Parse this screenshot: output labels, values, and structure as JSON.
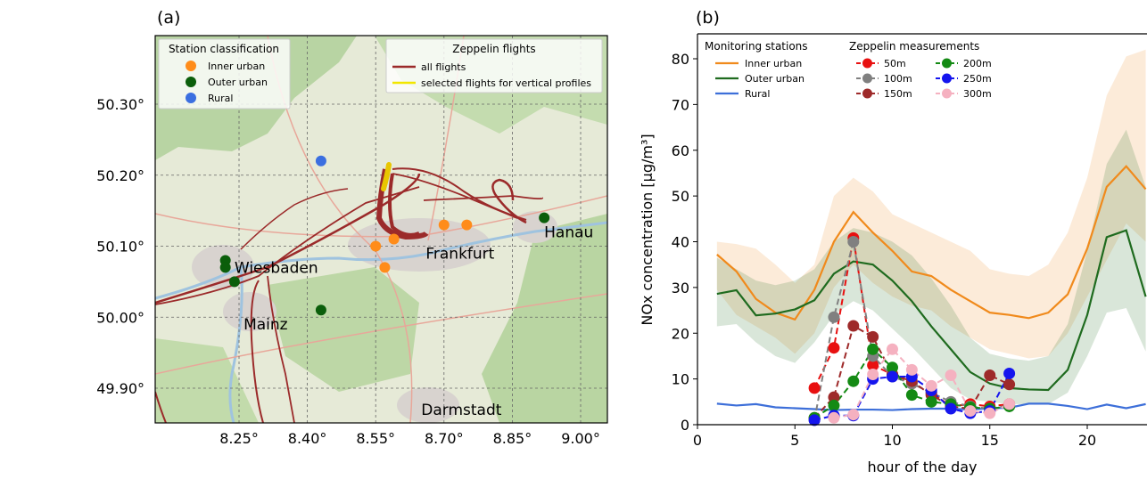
{
  "panels": {
    "a": {
      "label": "(a)"
    },
    "b": {
      "label": "(b)"
    }
  },
  "map": {
    "lat_ticks": [
      {
        "value": 50.3,
        "label": "50.30°"
      },
      {
        "value": 50.2,
        "label": "50.20°"
      },
      {
        "value": 50.1,
        "label": "50.10°"
      },
      {
        "value": 50.0,
        "label": "50.00°"
      },
      {
        "value": 49.9,
        "label": "49.90°"
      }
    ],
    "lon_ticks": [
      {
        "value": 8.25,
        "label": "8.25°"
      },
      {
        "value": 8.4,
        "label": "8.40°"
      },
      {
        "value": 8.55,
        "label": "8.55°"
      },
      {
        "value": 8.7,
        "label": "8.70°"
      },
      {
        "value": 8.85,
        "label": "8.85°"
      },
      {
        "value": 9.0,
        "label": "9.00°"
      }
    ],
    "extent": {
      "lon": [
        8.0,
        9.95
      ],
      "lat": [
        49.85,
        50.41
      ]
    },
    "cities": [
      {
        "name": "Wiesbaden",
        "lon": 8.24,
        "lat": 50.07
      },
      {
        "name": "Mainz",
        "lon": 8.26,
        "lat": 49.99
      },
      {
        "name": "Frankfurt",
        "lon": 8.66,
        "lat": 50.09
      },
      {
        "name": "Hanau",
        "lon": 8.92,
        "lat": 50.12
      },
      {
        "name": "Darmstadt",
        "lon": 8.65,
        "lat": 49.87
      }
    ],
    "legend_stations": {
      "title": "Station classification",
      "items": [
        {
          "label": "Inner urban",
          "color": "#ff8c1a"
        },
        {
          "label": "Outer urban",
          "color": "#0b5e0b"
        },
        {
          "label": "Rural",
          "color": "#3b6fe0"
        }
      ]
    },
    "legend_flights": {
      "title": "Zeppelin flights",
      "items": [
        {
          "label": "all flights",
          "color": "#9b2a2a"
        },
        {
          "label": "selected flights for vertical profiles",
          "color": "#f2e600"
        }
      ]
    },
    "stations": [
      {
        "class": "Inner urban",
        "lon": 8.55,
        "lat": 50.1
      },
      {
        "class": "Inner urban",
        "lon": 8.59,
        "lat": 50.11
      },
      {
        "class": "Inner urban",
        "lon": 8.57,
        "lat": 50.07
      },
      {
        "class": "Inner urban",
        "lon": 8.7,
        "lat": 50.13
      },
      {
        "class": "Inner urban",
        "lon": 8.75,
        "lat": 50.13
      },
      {
        "class": "Outer urban",
        "lon": 8.22,
        "lat": 50.08
      },
      {
        "class": "Outer urban",
        "lon": 8.22,
        "lat": 50.07
      },
      {
        "class": "Outer urban",
        "lon": 8.24,
        "lat": 50.05
      },
      {
        "class": "Outer urban",
        "lon": 8.43,
        "lat": 50.01
      },
      {
        "class": "Outer urban",
        "lon": 8.92,
        "lat": 50.14
      },
      {
        "class": "Rural",
        "lon": 8.43,
        "lat": 50.22
      }
    ]
  },
  "chart_data": {
    "type": "line",
    "xlabel": "hour of the day",
    "ylabel": "NOx concentration [µg/m³]",
    "xlim": [
      0,
      23
    ],
    "ylim": [
      0,
      85
    ],
    "x_ticks": [
      0,
      5,
      10,
      15,
      20
    ],
    "y_ticks": [
      0,
      10,
      20,
      30,
      40,
      50,
      60,
      70,
      80
    ],
    "grid": false,
    "legend_stations": {
      "title": "Monitoring stations",
      "placement": "top-left"
    },
    "legend_zeppelin": {
      "title": "Zeppelin measurements",
      "placement": "top-center"
    },
    "station_series": [
      {
        "name": "Inner urban",
        "color": "#f08a1c",
        "x": [
          1,
          2,
          3,
          4,
          5,
          6,
          7,
          8,
          9,
          10,
          11,
          12,
          13,
          14,
          15,
          16,
          17,
          18,
          19,
          20,
          21,
          22,
          23
        ],
        "values": [
          37.2,
          33.5,
          27.5,
          24.5,
          23.0,
          29.5,
          40.0,
          46.5,
          42.0,
          38.0,
          33.5,
          32.5,
          29.5,
          27.0,
          24.5,
          24.0,
          23.3,
          24.5,
          28.5,
          38.5,
          52.0,
          56.5,
          51.5
        ],
        "lower": [
          29.5,
          24.0,
          21.5,
          19.0,
          15.5,
          20.0,
          30.0,
          35.0,
          31.0,
          28.0,
          26.0,
          25.0,
          21.5,
          19.0,
          16.5,
          15.5,
          14.5,
          15.0,
          20.0,
          28.0,
          36.0,
          44.0,
          40.0
        ],
        "upper": [
          40.0,
          39.5,
          38.5,
          35.0,
          31.0,
          35.0,
          50.0,
          54.0,
          51.0,
          46.0,
          44.0,
          42.0,
          40.0,
          38.0,
          34.0,
          33.0,
          32.5,
          35.0,
          42.0,
          54.0,
          72.0,
          80.5,
          82.0
        ]
      },
      {
        "name": "Outer urban",
        "color": "#1f6b1f",
        "x": [
          1,
          2,
          3,
          4,
          5,
          6,
          7,
          8,
          9,
          10,
          11,
          12,
          13,
          14,
          15,
          16,
          17,
          18,
          19,
          20,
          21,
          22,
          23
        ],
        "values": [
          28.6,
          29.4,
          23.9,
          24.3,
          25.2,
          27.2,
          33.0,
          35.7,
          35.0,
          31.5,
          27.0,
          21.5,
          16.5,
          11.5,
          9.0,
          8.0,
          7.7,
          7.6,
          12.0,
          24.0,
          41.0,
          42.5,
          28.0
        ],
        "lower": [
          21.5,
          22.0,
          18.0,
          15.0,
          13.5,
          18.0,
          24.0,
          27.0,
          25.0,
          21.0,
          17.0,
          12.5,
          8.0,
          5.5,
          5.0,
          4.5,
          4.5,
          4.5,
          7.0,
          15.0,
          24.5,
          25.5,
          16.0
        ],
        "upper": [
          36.5,
          34.0,
          31.5,
          30.5,
          31.5,
          34.0,
          40.0,
          43.0,
          42.0,
          40.0,
          37.0,
          32.0,
          26.0,
          19.0,
          15.5,
          14.5,
          14.0,
          15.0,
          22.0,
          38.0,
          57.0,
          64.5,
          52.0
        ]
      },
      {
        "name": "Rural",
        "color": "#3d6fd9",
        "x": [
          1,
          2,
          3,
          4,
          5,
          6,
          7,
          8,
          9,
          10,
          11,
          12,
          13,
          14,
          15,
          16,
          17,
          18,
          19,
          20,
          21,
          22,
          23
        ],
        "values": [
          4.6,
          4.2,
          4.5,
          3.8,
          3.6,
          3.4,
          3.2,
          3.3,
          3.3,
          3.2,
          3.4,
          3.5,
          3.5,
          3.3,
          3.6,
          3.7,
          4.6,
          4.6,
          4.1,
          3.4,
          4.4,
          3.6,
          4.5
        ]
      }
    ],
    "zeppelin_series": [
      {
        "name": "50m",
        "color": "#e81010",
        "x": [
          6,
          7,
          8,
          9,
          10,
          11,
          12,
          13,
          14,
          15,
          16
        ],
        "values": [
          8.0,
          16.8,
          40.8,
          13.0,
          11.0,
          9.0,
          7.0,
          4.0,
          4.5,
          4.0,
          4.5
        ]
      },
      {
        "name": "100m",
        "color": "#808080",
        "x": [
          6,
          7,
          8,
          9,
          10,
          11,
          12,
          13,
          14,
          15,
          16
        ],
        "values": [
          1.0,
          23.5,
          40.0,
          15.0,
          10.5,
          9.0,
          7.0,
          5.0,
          4.0,
          3.5,
          4.2
        ]
      },
      {
        "name": "150m",
        "color": "#9e2a2a",
        "x": [
          6,
          7,
          8,
          9,
          10,
          11,
          12,
          13,
          14,
          15,
          16
        ],
        "values": [
          1.5,
          6.0,
          21.6,
          19.2,
          11.0,
          9.5,
          6.5,
          4.0,
          3.5,
          10.8,
          8.8
        ]
      },
      {
        "name": "200m",
        "color": "#148a14",
        "x": [
          6,
          7,
          8,
          9,
          10,
          11,
          12,
          13,
          14,
          15,
          16
        ],
        "values": [
          1.5,
          4.2,
          9.5,
          16.5,
          12.5,
          6.5,
          5.0,
          4.5,
          3.8,
          3.5,
          4.0
        ]
      },
      {
        "name": "250m",
        "color": "#1515ee",
        "x": [
          6,
          7,
          8,
          9,
          10,
          11,
          12,
          13,
          14,
          15,
          16
        ],
        "values": [
          1.0,
          2.0,
          2.0,
          10.0,
          10.5,
          10.5,
          7.5,
          3.5,
          2.5,
          3.0,
          11.2
        ]
      },
      {
        "name": "300m",
        "color": "#f5b1c0",
        "x": [
          7,
          8,
          9,
          10,
          11,
          12,
          13,
          14,
          15,
          16
        ],
        "values": [
          1.5,
          2.2,
          11.0,
          16.5,
          12.0,
          8.5,
          10.8,
          3.0,
          2.5,
          4.5
        ]
      }
    ]
  }
}
